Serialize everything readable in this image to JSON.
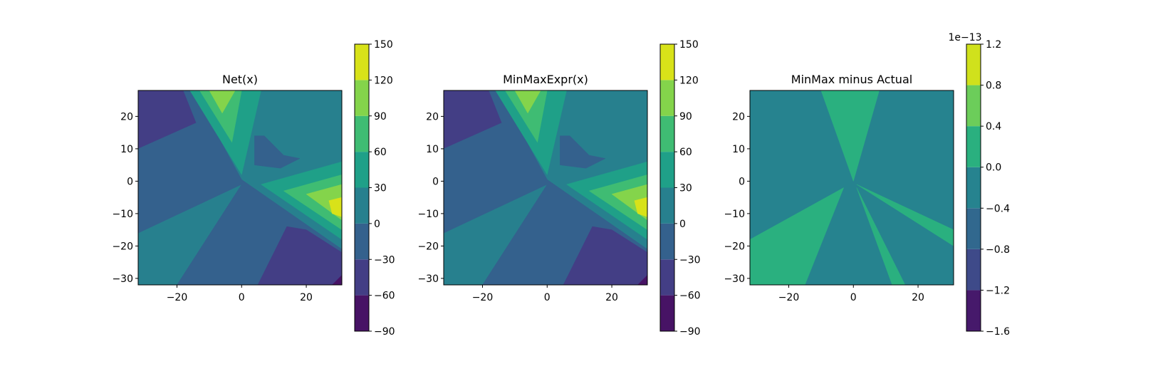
{
  "chart_data": [
    {
      "type": "contour",
      "title": "Net(x)",
      "xlim": [
        -32,
        31
      ],
      "ylim": [
        -32,
        28
      ],
      "xticks": [
        {
          "value": -20,
          "label": "−20"
        },
        0,
        20
      ],
      "yticks": [
        {
          "value": -30,
          "label": "−30"
        },
        {
          "value": -20,
          "label": "−20"
        },
        {
          "value": -10,
          "label": "−10"
        },
        0,
        10,
        20
      ],
      "clim": [
        -90,
        150
      ],
      "cticks": [
        {
          "value": -90,
          "label": "−90"
        },
        {
          "value": -60,
          "label": "−60"
        },
        {
          "value": -30,
          "label": "−30"
        },
        0,
        30,
        60,
        90,
        120,
        150
      ],
      "colors": [
        "#471365",
        "#433e85",
        "#34618d",
        "#27808e",
        "#1fa088",
        "#3fbc73",
        "#84d44b",
        "#d8e219"
      ],
      "regions": [
        {
          "level": 0,
          "points": [
            [
              -32,
              28
            ],
            [
              31,
              28
            ],
            [
              31,
              -32
            ],
            [
              -32,
              -32
            ]
          ]
        },
        {
          "level": -60,
          "points": [
            [
              -32,
              28
            ],
            [
              -18,
              28
            ],
            [
              -14,
              18
            ],
            [
              -32,
              10
            ]
          ]
        },
        {
          "level": -30,
          "points": [
            [
              -32,
              10
            ],
            [
              -14,
              18
            ],
            [
              -18,
              28
            ],
            [
              -15,
              28
            ],
            [
              0,
              0.5
            ],
            [
              31,
              -21
            ],
            [
              31,
              -32
            ],
            [
              -20,
              -32
            ],
            [
              0,
              -1
            ],
            [
              -32,
              -16
            ]
          ]
        },
        {
          "level": -60,
          "points": [
            [
              5,
              -32
            ],
            [
              14,
              -14
            ],
            [
              20,
              -15
            ],
            [
              31,
              -22
            ],
            [
              31,
              -32
            ]
          ]
        },
        {
          "level": -90,
          "points": [
            [
              28,
              -32
            ],
            [
              31,
              -29
            ],
            [
              31,
              -32
            ]
          ]
        },
        {
          "level": -30,
          "points": [
            [
              4,
              14
            ],
            [
              7,
              14
            ],
            [
              13,
              8
            ],
            [
              18,
              7
            ],
            [
              12,
              4
            ],
            [
              4,
              5
            ]
          ]
        },
        {
          "level": 30,
          "points": [
            [
              -16,
              28
            ],
            [
              0,
              2
            ],
            [
              6,
              28
            ]
          ]
        },
        {
          "level": 60,
          "points": [
            [
              -13,
              28
            ],
            [
              -3,
              12
            ],
            [
              0,
              28
            ]
          ]
        },
        {
          "level": 90,
          "points": [
            [
              -10,
              28
            ],
            [
              -6,
              21
            ],
            [
              -2,
              28
            ]
          ]
        },
        {
          "level": 30,
          "points": [
            [
              31,
              6
            ],
            [
              6,
              -1
            ],
            [
              31,
              -18
            ]
          ]
        },
        {
          "level": 60,
          "points": [
            [
              31,
              2
            ],
            [
              13,
              -3
            ],
            [
              31,
              -15
            ]
          ]
        },
        {
          "level": 90,
          "points": [
            [
              31,
              -1
            ],
            [
              20,
              -4
            ],
            [
              31,
              -12
            ]
          ]
        },
        {
          "level": 120,
          "points": [
            [
              31,
              -5
            ],
            [
              27,
              -6
            ],
            [
              28,
              -10
            ],
            [
              31,
              -11
            ]
          ]
        }
      ]
    },
    {
      "type": "contour",
      "title": "MinMaxExpr(x)",
      "xlim": [
        -32,
        31
      ],
      "ylim": [
        -32,
        28
      ],
      "xticks": [
        {
          "value": -20,
          "label": "−20"
        },
        0,
        20
      ],
      "yticks": [
        {
          "value": -30,
          "label": "−30"
        },
        {
          "value": -20,
          "label": "−20"
        },
        {
          "value": -10,
          "label": "−10"
        },
        0,
        10,
        20
      ],
      "clim": [
        -90,
        150
      ],
      "cticks": [
        {
          "value": -90,
          "label": "−90"
        },
        {
          "value": -60,
          "label": "−60"
        },
        {
          "value": -30,
          "label": "−30"
        },
        0,
        30,
        60,
        90,
        120,
        150
      ],
      "colors": [
        "#471365",
        "#433e85",
        "#34618d",
        "#27808e",
        "#1fa088",
        "#3fbc73",
        "#84d44b",
        "#d8e219"
      ],
      "regions": [
        {
          "level": 0,
          "points": [
            [
              -32,
              28
            ],
            [
              31,
              28
            ],
            [
              31,
              -32
            ],
            [
              -32,
              -32
            ]
          ]
        },
        {
          "level": -60,
          "points": [
            [
              -32,
              28
            ],
            [
              -18,
              28
            ],
            [
              -14,
              18
            ],
            [
              -32,
              10
            ]
          ]
        },
        {
          "level": -30,
          "points": [
            [
              -32,
              10
            ],
            [
              -14,
              18
            ],
            [
              -18,
              28
            ],
            [
              -15,
              28
            ],
            [
              0,
              0.5
            ],
            [
              31,
              -21
            ],
            [
              31,
              -32
            ],
            [
              -20,
              -32
            ],
            [
              0,
              -1
            ],
            [
              -32,
              -16
            ]
          ]
        },
        {
          "level": -60,
          "points": [
            [
              5,
              -32
            ],
            [
              14,
              -14
            ],
            [
              20,
              -15
            ],
            [
              31,
              -22
            ],
            [
              31,
              -32
            ]
          ]
        },
        {
          "level": -90,
          "points": [
            [
              28,
              -32
            ],
            [
              31,
              -29
            ],
            [
              31,
              -32
            ]
          ]
        },
        {
          "level": -30,
          "points": [
            [
              4,
              14
            ],
            [
              7,
              14
            ],
            [
              13,
              8
            ],
            [
              18,
              7
            ],
            [
              12,
              4
            ],
            [
              4,
              5
            ]
          ]
        },
        {
          "level": 30,
          "points": [
            [
              -16,
              28
            ],
            [
              0,
              2
            ],
            [
              6,
              28
            ]
          ]
        },
        {
          "level": 60,
          "points": [
            [
              -13,
              28
            ],
            [
              -3,
              12
            ],
            [
              0,
              28
            ]
          ]
        },
        {
          "level": 90,
          "points": [
            [
              -10,
              28
            ],
            [
              -6,
              21
            ],
            [
              -2,
              28
            ]
          ]
        },
        {
          "level": 30,
          "points": [
            [
              31,
              6
            ],
            [
              6,
              -1
            ],
            [
              31,
              -18
            ]
          ]
        },
        {
          "level": 60,
          "points": [
            [
              31,
              2
            ],
            [
              13,
              -3
            ],
            [
              31,
              -15
            ]
          ]
        },
        {
          "level": 90,
          "points": [
            [
              31,
              -1
            ],
            [
              20,
              -4
            ],
            [
              31,
              -12
            ]
          ]
        },
        {
          "level": 120,
          "points": [
            [
              31,
              -5
            ],
            [
              27,
              -6
            ],
            [
              28,
              -10
            ],
            [
              31,
              -11
            ]
          ]
        }
      ]
    },
    {
      "type": "contour",
      "title": "MinMax minus Actual",
      "xlim": [
        -32,
        31
      ],
      "ylim": [
        -32,
        28
      ],
      "xticks": [
        {
          "value": -20,
          "label": "−20"
        },
        0,
        20
      ],
      "yticks": [
        {
          "value": -30,
          "label": "−30"
        },
        {
          "value": -20,
          "label": "−20"
        },
        {
          "value": -10,
          "label": "−10"
        },
        0,
        10,
        20
      ],
      "clim": [
        -1.6,
        1.2
      ],
      "cticks": [
        {
          "value": -1.6,
          "label": "−1.6"
        },
        {
          "value": -1.2,
          "label": "−1.2"
        },
        {
          "value": -0.8,
          "label": "−0.8"
        },
        {
          "value": -0.4,
          "label": "−0.4"
        },
        {
          "value": 0,
          "label": "0.0"
        },
        0.4,
        0.8,
        1.2
      ],
      "offset_label": "1e−13",
      "colors": [
        "#46196b",
        "#3e4a89",
        "#31688e",
        "#26838f",
        "#2ab07f",
        "#6ccd5a",
        "#d0e11c"
      ],
      "regions": [
        {
          "level": -0.4,
          "points": [
            [
              -32,
              28
            ],
            [
              31,
              28
            ],
            [
              31,
              -32
            ],
            [
              -32,
              -32
            ]
          ]
        },
        {
          "level": 0,
          "points": [
            [
              -32,
              -18
            ],
            [
              -3,
              -2
            ],
            [
              -15,
              -32
            ],
            [
              -32,
              -32
            ]
          ]
        },
        {
          "level": 0,
          "points": [
            [
              -10,
              28
            ],
            [
              0,
              0
            ],
            [
              8,
              28
            ]
          ]
        },
        {
          "level": 0,
          "points": [
            [
              1,
              -1
            ],
            [
              31,
              -15
            ],
            [
              31,
              -20
            ]
          ]
        },
        {
          "level": 0,
          "points": [
            [
              1,
              -2
            ],
            [
              12,
              -32
            ],
            [
              16,
              -32
            ]
          ]
        }
      ]
    }
  ]
}
